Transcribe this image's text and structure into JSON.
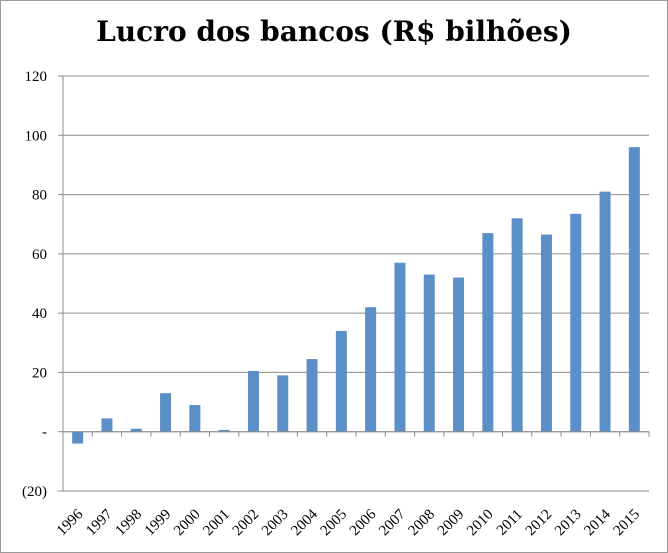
{
  "chart_data": {
    "type": "bar",
    "title": "Lucro dos bancos (R$ bilhões)",
    "xlabel": "",
    "ylabel": "",
    "categories": [
      "1996",
      "1997",
      "1998",
      "1999",
      "2000",
      "2001",
      "2002",
      "2003",
      "2004",
      "2005",
      "2006",
      "2007",
      "2008",
      "2009",
      "2010",
      "2011",
      "2012",
      "2013",
      "2014",
      "2015"
    ],
    "values": [
      -4,
      4.5,
      1,
      13,
      9,
      0.6,
      20.5,
      19,
      24.5,
      34,
      42,
      57,
      53,
      52,
      67,
      72,
      66.5,
      73.5,
      81,
      96
    ],
    "ylim": [
      -20,
      120
    ],
    "yticks": [
      120,
      100,
      80,
      60,
      40,
      20,
      0,
      -20
    ],
    "ytick_labels": [
      "120",
      "100",
      "80",
      "60",
      "40",
      "20",
      "-",
      "(20)"
    ],
    "grid": true,
    "bar_color": "#5b8fc7",
    "legend": "none"
  }
}
